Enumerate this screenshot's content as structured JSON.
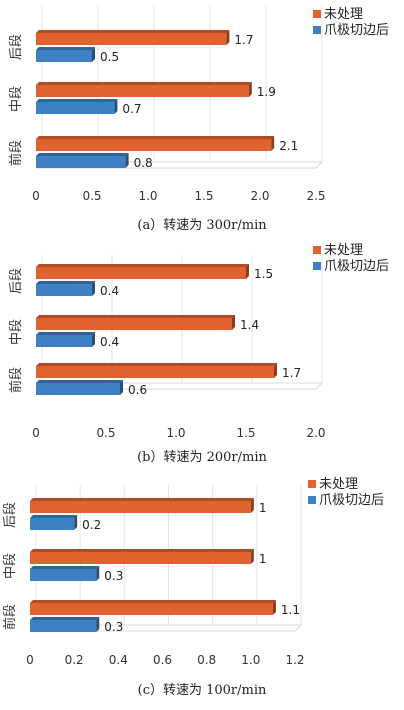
{
  "chart_data": [
    {
      "type": "bar",
      "orientation": "horizontal",
      "categories": [
        "前段",
        "中段",
        "后段"
      ],
      "series": [
        {
          "name": "未处理",
          "values": [
            2.1,
            1.9,
            1.7
          ],
          "labels": [
            "2.1",
            "1.9",
            "1.7"
          ],
          "color": "#E0622F"
        },
        {
          "name": "爪极切边后",
          "values": [
            0.8,
            0.7,
            0.5
          ],
          "labels": [
            "0.8",
            "0.7",
            "0.5"
          ],
          "color": "#3D80C4"
        }
      ],
      "xlim": [
        0,
        2.5
      ],
      "xticks": [
        "0",
        "0.5",
        "1.0",
        "1.5",
        "2.0",
        "2.5"
      ],
      "xlabel": "",
      "ylabel": "",
      "legend": "top-right",
      "caption": "(a）转速为 300r/min"
    },
    {
      "type": "bar",
      "orientation": "horizontal",
      "categories": [
        "前段",
        "中段",
        "后段"
      ],
      "series": [
        {
          "name": "未处理",
          "values": [
            1.7,
            1.4,
            1.5
          ],
          "labels": [
            "1.7",
            "1.4",
            "1.5"
          ],
          "color": "#E0622F"
        },
        {
          "name": "爪极切边后",
          "values": [
            0.6,
            0.4,
            0.4
          ],
          "labels": [
            "0.6",
            "0.4",
            "0.4"
          ],
          "color": "#3D80C4"
        }
      ],
      "xlim": [
        0,
        2.0
      ],
      "xticks": [
        "0",
        "0.5",
        "1.0",
        "1.5",
        "2.0"
      ],
      "xlabel": "",
      "ylabel": "",
      "legend": "top-right",
      "caption": "(b）转速为 200r/min"
    },
    {
      "type": "bar",
      "orientation": "horizontal",
      "categories": [
        "前段",
        "中段",
        "后段"
      ],
      "series": [
        {
          "name": "未处理",
          "values": [
            1.1,
            1.0,
            1.0
          ],
          "labels": [
            "1.1",
            "1",
            "1"
          ],
          "color": "#E0622F"
        },
        {
          "name": "爪极切边后",
          "values": [
            0.3,
            0.3,
            0.2
          ],
          "labels": [
            "0.3",
            "0.3",
            "0.2"
          ],
          "color": "#3D80C4"
        }
      ],
      "xlim": [
        0,
        1.2
      ],
      "xticks": [
        "0",
        "0.2",
        "0.4",
        "0.6",
        "0.8",
        "1.0",
        "1.2"
      ],
      "xlabel": "",
      "ylabel": "",
      "legend": "top-right",
      "caption": "(c）转速为 100r/min"
    }
  ]
}
